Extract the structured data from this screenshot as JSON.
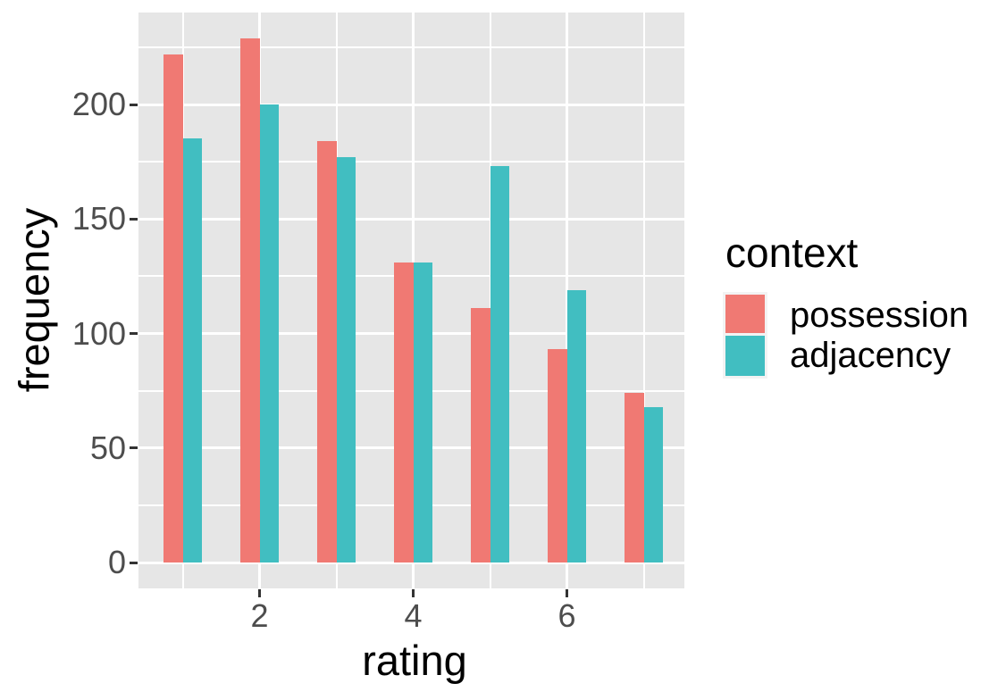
{
  "chart_data": {
    "type": "bar",
    "title": "",
    "xlabel": "rating",
    "ylabel": "frequency",
    "categories": [
      1,
      2,
      3,
      4,
      5,
      6,
      7
    ],
    "series": [
      {
        "name": "possession",
        "color": "#F07973",
        "values": [
          222,
          229,
          184,
          131,
          111,
          93,
          74
        ]
      },
      {
        "name": "adjacency",
        "color": "#41BEC1",
        "values": [
          185,
          200,
          177,
          131,
          173,
          119,
          68
        ]
      }
    ],
    "ylim": [
      0,
      240
    ],
    "yticks": [
      0,
      50,
      100,
      150,
      200
    ],
    "yticks_minor": [
      25,
      75,
      125,
      175,
      225
    ],
    "xticks": [
      2,
      4,
      6
    ],
    "grid": true,
    "legend": {
      "title": "context",
      "position": "right"
    },
    "colors": {
      "panel_background": "#E6E6E6",
      "grid": "#FFFFFF",
      "tick_label": "#4D4D4D",
      "tick_mark": "#333333",
      "axis_title": "#000000"
    }
  }
}
